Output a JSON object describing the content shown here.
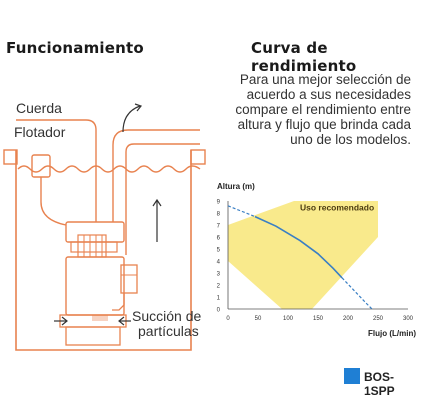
{
  "left": {
    "title": "Funcionamiento",
    "label_cord": "Cuerda",
    "label_float": "Flotador",
    "label_suction_1": "Succión de",
    "label_suction_2": "partículas"
  },
  "right": {
    "title": "Curva de rendimiento",
    "desc_lines": [
      "Para una mejor selección de",
      "acuerdo a sus necesidades",
      "compare el rendimiento entre",
      "altura y flujo que brinda cada",
      "uno de los modelos."
    ]
  },
  "colors": {
    "accent": "#e8824f",
    "zone": "#f9ea8c",
    "curve": "#3a7fc4",
    "legend": "#1f7fd4"
  },
  "chart_data": {
    "type": "line",
    "ylabel": "Altura (m)",
    "xlabel": "Flujo (L/min)",
    "xlim": [
      0,
      300
    ],
    "ylim": [
      0,
      9
    ],
    "x_ticks": [
      0,
      50,
      100,
      150,
      200,
      250,
      300
    ],
    "y_ticks": [
      0,
      1,
      2,
      3,
      4,
      5,
      6,
      7,
      8,
      9
    ],
    "grid": false,
    "zone_label": "Uso recomendado",
    "zone_polygon": [
      [
        0,
        4
      ],
      [
        0,
        7
      ],
      [
        110,
        9
      ],
      [
        250,
        9
      ],
      [
        250,
        6
      ],
      [
        140,
        0
      ],
      [
        90,
        0
      ]
    ],
    "series": [
      {
        "name": "BOS-1SPP",
        "solid": [
          [
            45,
            7.7
          ],
          [
            80,
            6.9
          ],
          [
            120,
            5.7
          ],
          [
            150,
            4.6
          ],
          [
            175,
            3.4
          ],
          [
            190,
            2.6
          ]
        ],
        "dashed_start": [
          [
            0,
            8.6
          ],
          [
            45,
            7.7
          ]
        ],
        "dashed_end": [
          [
            190,
            2.6
          ],
          [
            230,
            0.5
          ],
          [
            240,
            0
          ]
        ]
      }
    ]
  },
  "legend": {
    "label": "BOS-1SPP"
  }
}
